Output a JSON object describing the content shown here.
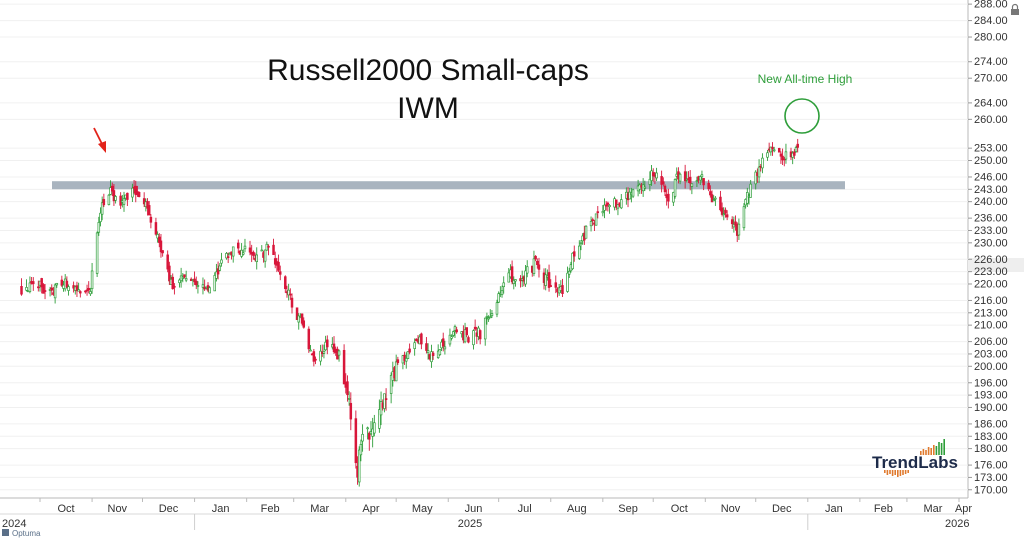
{
  "chart_data": {
    "type": "candlestick",
    "title_line1": "Russell2000 Small-caps",
    "title_line2": "IWM",
    "annotation": "New All-time High",
    "brand": "TrendLabs",
    "source": "Optuma",
    "colors": {
      "up": "#2e9e3a",
      "down": "#d8163a",
      "band": "#a9b4bf",
      "arrow": "#e2231a",
      "annotation": "#2e9e3a"
    },
    "ylim": [
      168,
      289
    ],
    "y_ticks": [
      170,
      173,
      176,
      180,
      183,
      186,
      190,
      193,
      196,
      200,
      203,
      206,
      210,
      213,
      216,
      220,
      223,
      226,
      230,
      233,
      236,
      240,
      243,
      246,
      250,
      253,
      260,
      264,
      270,
      274,
      280,
      284,
      288
    ],
    "x_months": [
      "Oct",
      "Nov",
      "Dec",
      "Jan",
      "Feb",
      "Mar",
      "Apr",
      "May",
      "Jun",
      "Jul",
      "Aug",
      "Sep",
      "Oct",
      "Nov",
      "Dec",
      "Jan",
      "Feb",
      "Mar",
      "Apr"
    ],
    "x_years": [
      "2024",
      "2025",
      "2026"
    ],
    "resistance_level": 244,
    "close_anchors": [
      [
        "2024-09-20",
        219
      ],
      [
        "2024-09-30",
        220
      ],
      [
        "2024-10-07",
        218
      ],
      [
        "2024-10-14",
        221
      ],
      [
        "2024-10-21",
        218
      ],
      [
        "2024-10-31",
        219
      ],
      [
        "2024-11-06",
        238
      ],
      [
        "2024-11-11",
        243
      ],
      [
        "2024-11-18",
        239
      ],
      [
        "2024-11-25",
        243
      ],
      [
        "2024-12-03",
        239
      ],
      [
        "2024-12-10",
        232
      ],
      [
        "2024-12-18",
        220
      ],
      [
        "2024-12-27",
        222
      ],
      [
        "2025-01-10",
        218
      ],
      [
        "2025-01-17",
        226
      ],
      [
        "2025-01-24",
        229
      ],
      [
        "2025-01-31",
        228
      ],
      [
        "2025-02-07",
        226
      ],
      [
        "2025-02-14",
        229
      ],
      [
        "2025-02-21",
        222
      ],
      [
        "2025-02-28",
        215
      ],
      [
        "2025-03-07",
        209
      ],
      [
        "2025-03-13",
        201
      ],
      [
        "2025-03-20",
        205
      ],
      [
        "2025-03-28",
        203
      ],
      [
        "2025-04-03",
        190
      ],
      [
        "2025-04-08",
        175
      ],
      [
        "2025-04-11",
        183
      ],
      [
        "2025-04-17",
        184
      ],
      [
        "2025-04-24",
        193
      ],
      [
        "2025-05-02",
        200
      ],
      [
        "2025-05-09",
        204
      ],
      [
        "2025-05-14",
        207
      ],
      [
        "2025-05-21",
        202
      ],
      [
        "2025-05-30",
        205
      ],
      [
        "2025-06-06",
        209
      ],
      [
        "2025-06-13",
        207
      ],
      [
        "2025-06-20",
        208
      ],
      [
        "2025-06-30",
        216
      ],
      [
        "2025-07-08",
        222
      ],
      [
        "2025-07-16",
        222
      ],
      [
        "2025-07-23",
        225
      ],
      [
        "2025-07-31",
        220
      ],
      [
        "2025-08-07",
        218
      ],
      [
        "2025-08-14",
        226
      ],
      [
        "2025-08-22",
        233
      ],
      [
        "2025-08-29",
        236
      ],
      [
        "2025-09-05",
        240
      ],
      [
        "2025-09-12",
        239
      ],
      [
        "2025-09-18",
        243
      ],
      [
        "2025-09-26",
        244
      ],
      [
        "2025-10-03",
        248
      ],
      [
        "2025-10-10",
        240
      ],
      [
        "2025-10-15",
        246
      ],
      [
        "2025-10-22",
        244
      ],
      [
        "2025-10-29",
        246
      ],
      [
        "2025-11-05",
        240
      ],
      [
        "2025-11-12",
        238
      ],
      [
        "2025-11-20",
        233
      ],
      [
        "2025-11-26",
        241
      ],
      [
        "2025-12-03",
        249
      ],
      [
        "2025-12-10",
        254
      ],
      [
        "2025-12-17",
        250
      ],
      [
        "2025-12-23",
        252
      ],
      [
        "2025-12-26",
        254
      ]
    ],
    "x_axis_labels_note": "daily bars"
  }
}
